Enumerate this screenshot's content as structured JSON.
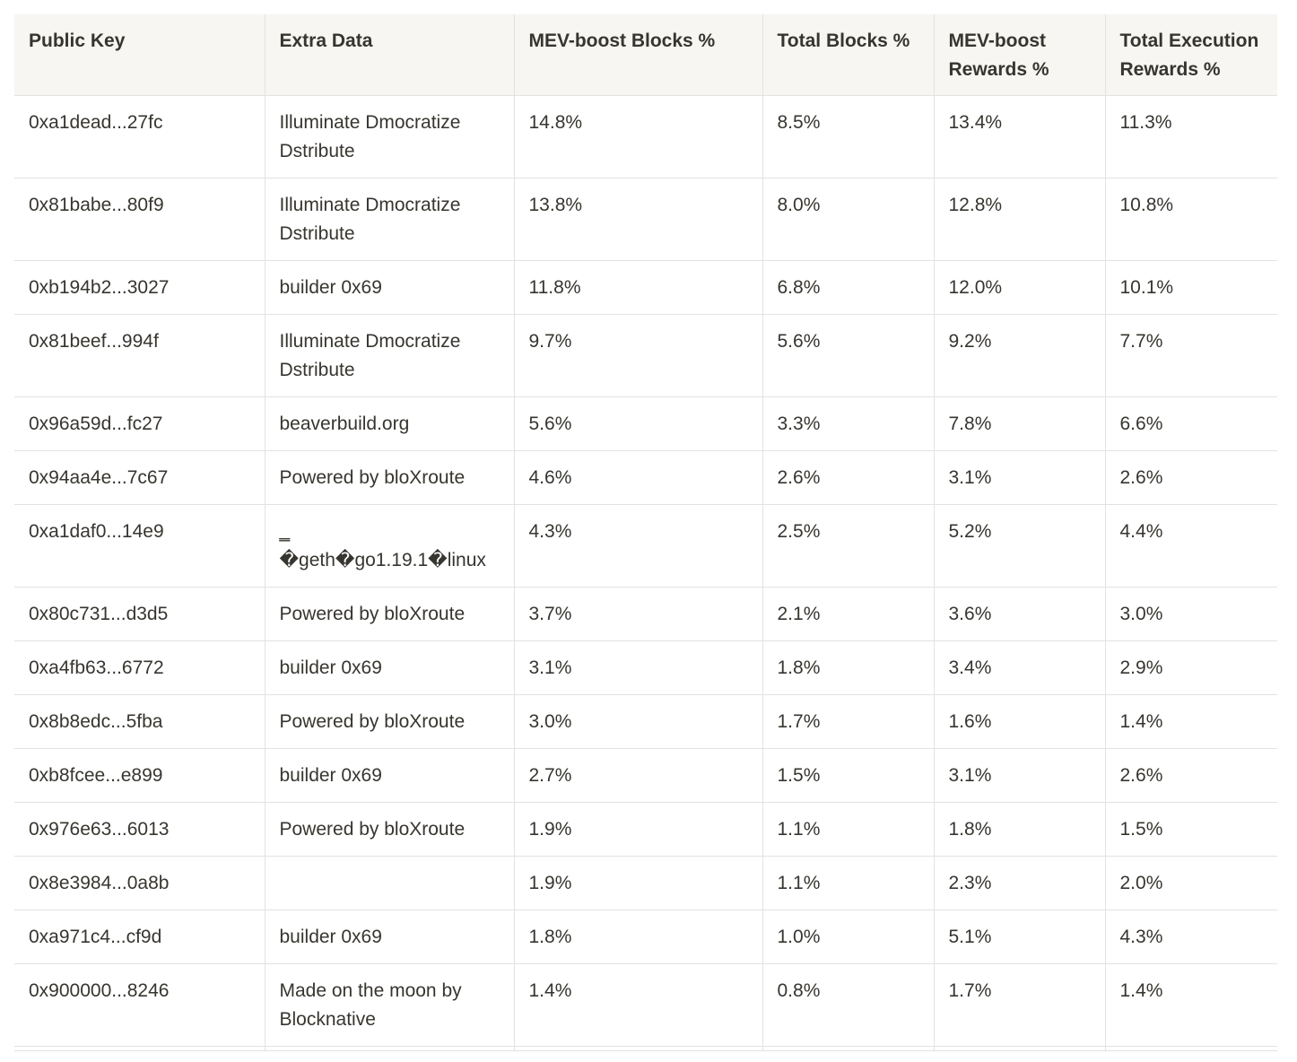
{
  "table": {
    "headers": [
      "Public Key",
      "Extra Data",
      "MEV-boost Blocks %",
      "Total Blocks %",
      "MEV-boost Rewards %",
      "Total Execution Rewards %"
    ],
    "rows": [
      [
        "0xa1dead...27fc",
        "Illuminate Dmocratize Dstribute",
        "14.8%",
        "8.5%",
        "13.4%",
        "11.3%"
      ],
      [
        "0x81babe...80f9",
        "Illuminate Dmocratize Dstribute",
        "13.8%",
        "8.0%",
        "12.8%",
        "10.8%"
      ],
      [
        "0xb194b2...3027",
        "builder 0x69",
        "11.8%",
        "6.8%",
        "12.0%",
        "10.1%"
      ],
      [
        "0x81beef...994f",
        "Illuminate Dmocratize Dstribute",
        "9.7%",
        "5.6%",
        "9.2%",
        "7.7%"
      ],
      [
        "0x96a59d...fc27",
        "beaverbuild.org",
        "5.6%",
        "3.3%",
        "7.8%",
        "6.6%"
      ],
      [
        "0x94aa4e...7c67",
        "Powered by bloXroute",
        "4.6%",
        "2.6%",
        "3.1%",
        "2.6%"
      ],
      [
        "0xa1daf0...14e9",
        "‗\n�geth�go1.19.1�linux",
        "4.3%",
        "2.5%",
        "5.2%",
        "4.4%"
      ],
      [
        "0x80c731...d3d5",
        "Powered by bloXroute",
        "3.7%",
        "2.1%",
        "3.6%",
        "3.0%"
      ],
      [
        "0xa4fb63...6772",
        "builder 0x69",
        "3.1%",
        "1.8%",
        "3.4%",
        "2.9%"
      ],
      [
        "0x8b8edc...5fba",
        "Powered by bloXroute",
        "3.0%",
        "1.7%",
        "1.6%",
        "1.4%"
      ],
      [
        "0xb8fcee...e899",
        "builder 0x69",
        "2.7%",
        "1.5%",
        "3.1%",
        "2.6%"
      ],
      [
        "0x976e63...6013",
        "Powered by bloXroute",
        "1.9%",
        "1.1%",
        "1.8%",
        "1.5%"
      ],
      [
        "0x8e3984...0a8b",
        "",
        "1.9%",
        "1.1%",
        "2.3%",
        "2.0%"
      ],
      [
        "0xa971c4...cf9d",
        "builder 0x69",
        "1.8%",
        "1.0%",
        "5.1%",
        "4.3%"
      ],
      [
        "0x900000...8246",
        "Made on the moon by Blocknative",
        "1.4%",
        "0.8%",
        "1.7%",
        "1.4%"
      ],
      [
        "",
        "",
        "",
        "",
        "",
        ""
      ]
    ]
  }
}
